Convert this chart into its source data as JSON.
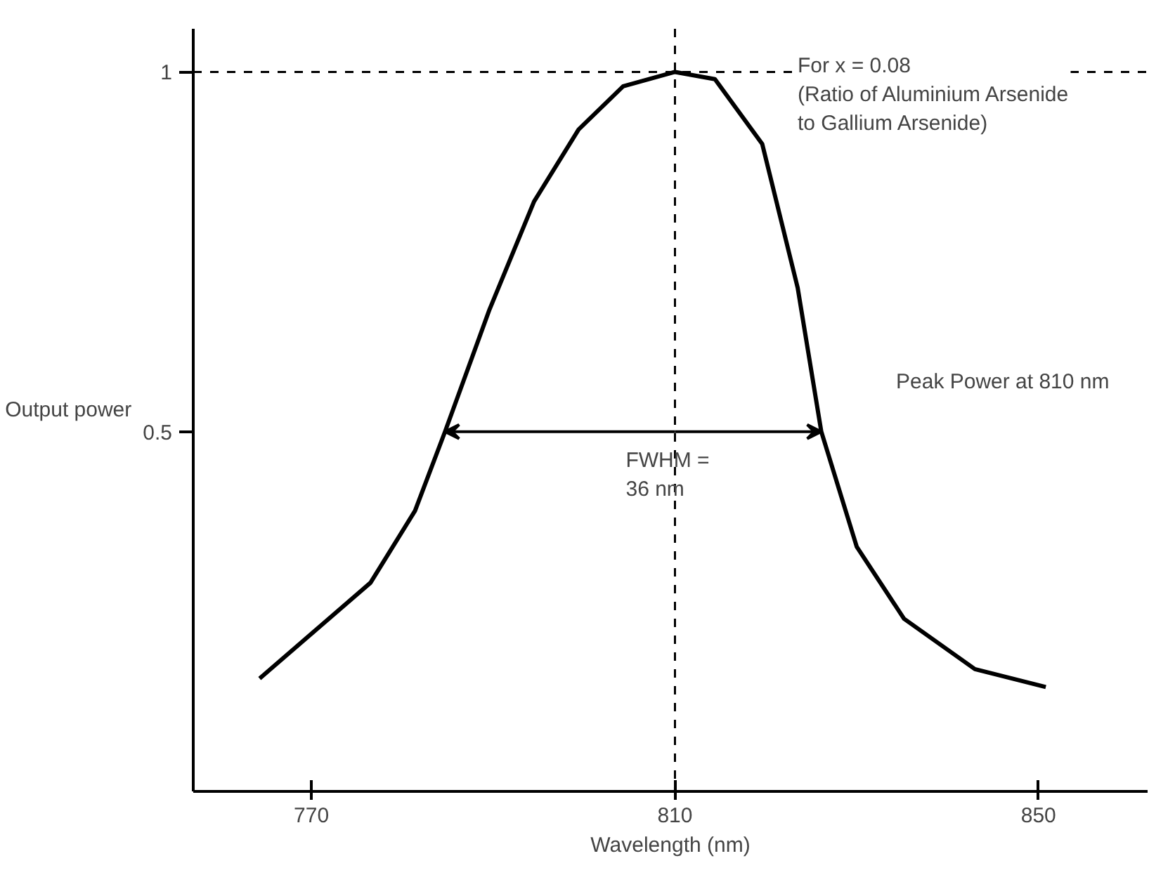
{
  "chart_data": {
    "type": "line",
    "xlabel": "Wavelength (nm)",
    "ylabel": "Output power",
    "x": [
      764.3,
      776.5,
      781.4,
      784.7,
      789.6,
      794.5,
      799.4,
      804.3,
      810,
      814.4,
      819.6,
      823.5,
      826.1,
      830,
      835.2,
      843,
      850.8
    ],
    "series": [
      {
        "color": "#000000",
        "values": [
          0.157,
          0.29,
          0.39,
          0.5,
          0.67,
          0.82,
          0.92,
          0.98,
          1.0,
          0.99,
          0.9,
          0.7,
          0.5,
          0.34,
          0.24,
          0.17,
          0.145
        ]
      }
    ],
    "xlim": [
      757,
      862
    ],
    "ylim": [
      0,
      1.06
    ],
    "xticks": [
      770,
      810,
      850
    ],
    "yticks": [
      0.5,
      1
    ],
    "ref_lines": [
      {
        "axis": "y",
        "value": 1,
        "line_style": "dashed",
        "color": "#000000"
      },
      {
        "axis": "x",
        "value": 810,
        "line_style": "dashed",
        "color": "#000000"
      }
    ],
    "annotations": [
      "For x = 0.08\n(Ratio of Aluminium Arsenide\nto Gallium Arsenide)",
      "Peak Power at 810 nm",
      {
        "text": "FWHM =\n36 nm",
        "x": 810,
        "y": 0.5
      }
    ],
    "line_style": "solid"
  }
}
